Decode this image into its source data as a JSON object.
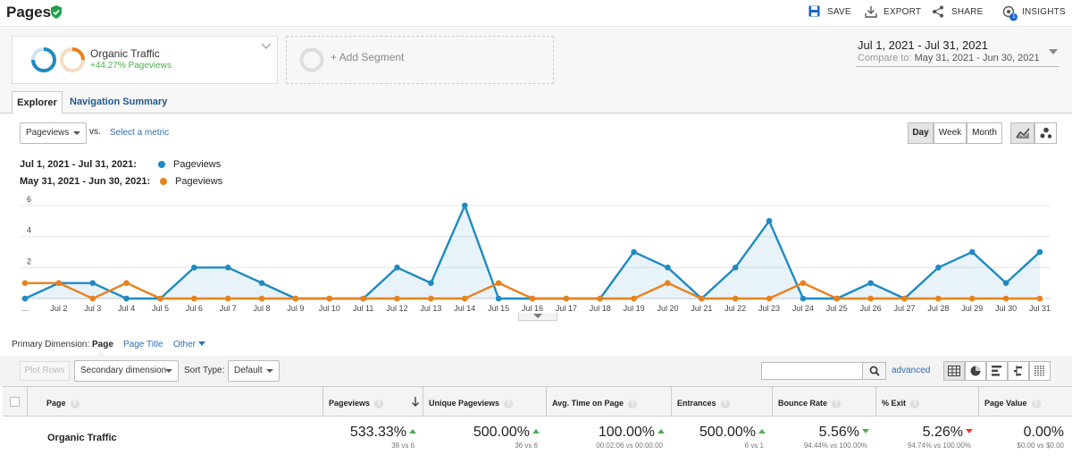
{
  "header": {
    "title": "Pages",
    "save_label": "SAVE",
    "export_label": "EXPORT",
    "share_label": "SHARE",
    "insights_label": "INSIGHTS",
    "insights_badge": "1"
  },
  "segments": {
    "active_name": "Organic Traffic",
    "active_sub": "+44.27% Pageviews",
    "add_label": "+ Add Segment"
  },
  "date": {
    "range": "Jul 1, 2021 - Jul 31, 2021",
    "compare_label": "Compare to:",
    "compare_range": "May 31, 2021 - Jun 30, 2021"
  },
  "tabs": {
    "explorer": "Explorer",
    "navigation": "Navigation Summary"
  },
  "controls": {
    "metric": "Pageviews",
    "vs": "vs.",
    "select_metric": "Select a metric",
    "day": "Day",
    "week": "Week",
    "month": "Month"
  },
  "legend": {
    "current_range": "Jul 1, 2021 - Jul 31, 2021:",
    "current_metric": "Pageviews",
    "current_color": "#1f8ac2",
    "previous_range": "May 31, 2021 - Jun 30, 2021:",
    "previous_metric": "Pageviews",
    "previous_color": "#e8821e"
  },
  "chart_data": {
    "type": "line",
    "x": [
      "…",
      "Jul 2",
      "Jul 3",
      "Jul 4",
      "Jul 5",
      "Jul 6",
      "Jul 7",
      "Jul 8",
      "Jul 9",
      "Jul 10",
      "Jul 11",
      "Jul 12",
      "Jul 13",
      "Jul 14",
      "Jul 15",
      "Jul 16",
      "Jul 17",
      "Jul 18",
      "Jul 19",
      "Jul 20",
      "Jul 21",
      "Jul 22",
      "Jul 23",
      "Jul 24",
      "Jul 25",
      "Jul 26",
      "Jul 27",
      "Jul 28",
      "Jul 29",
      "Jul 30",
      "Jul 31"
    ],
    "series": [
      {
        "name": "Pageviews",
        "color": "#1f8ac2",
        "fill": true,
        "values": [
          0,
          1,
          1,
          0,
          0,
          2,
          2,
          1,
          0,
          0,
          0,
          2,
          1,
          6,
          0,
          0,
          0,
          0,
          3,
          2,
          0,
          2,
          5,
          0,
          0,
          1,
          0,
          2,
          3,
          1,
          3
        ]
      },
      {
        "name": "Pageviews",
        "color": "#e8821e",
        "fill": false,
        "values": [
          1,
          1,
          0,
          1,
          0,
          0,
          0,
          0,
          0,
          0,
          0,
          0,
          0,
          0,
          1,
          0,
          0,
          0,
          0,
          1,
          0,
          0,
          0,
          1,
          0,
          0,
          0,
          0,
          0,
          0,
          0
        ]
      }
    ],
    "yticks": [
      2,
      4,
      6
    ],
    "ylim": [
      0,
      6.8
    ],
    "grid": true,
    "legend_position": "top-left"
  },
  "primary_dimension": {
    "label": "Primary Dimension:",
    "page": "Page",
    "page_title": "Page Title",
    "other": "Other"
  },
  "toolbar": {
    "plot_rows": "Plot Rows",
    "secondary": "Secondary dimension",
    "sort_type_label": "Sort Type:",
    "sort_type": "Default",
    "advanced": "advanced"
  },
  "table": {
    "columns": [
      "Page",
      "Pageviews",
      "Unique Pageviews",
      "Avg. Time on Page",
      "Entrances",
      "Bounce Rate",
      "% Exit",
      "Page Value"
    ],
    "row": {
      "name": "Organic Traffic",
      "cells": [
        {
          "value": "533.33%",
          "sub": "38 vs 6",
          "dir": "up"
        },
        {
          "value": "500.00%",
          "sub": "36 vs 6",
          "dir": "up"
        },
        {
          "value": "100.00%",
          "sub": "00:02:06 vs 00:00:00",
          "dir": "up"
        },
        {
          "value": "500.00%",
          "sub": "6 vs 1",
          "dir": "up"
        },
        {
          "value": "5.56%",
          "sub": "94.44% vs 100.00%",
          "dir": "down-good"
        },
        {
          "value": "5.26%",
          "sub": "94.74% vs 100.00%",
          "dir": "down-bad"
        },
        {
          "value": "0.00%",
          "sub": "$0.00 vs $0.00",
          "dir": "none"
        }
      ]
    }
  }
}
